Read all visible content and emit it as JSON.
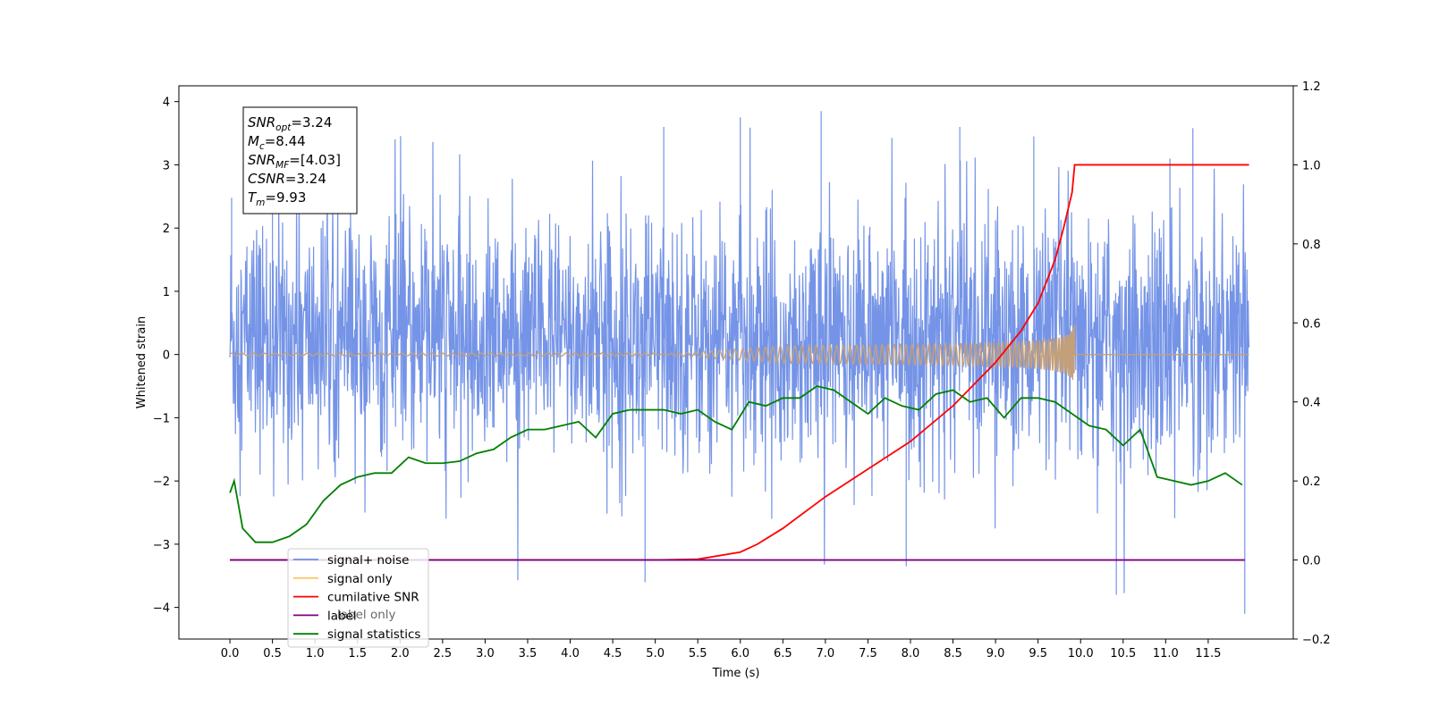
{
  "chart_data": {
    "type": "line",
    "xlabel": "Time (s)",
    "ylabel": "Whitened strain",
    "xlim": [
      -0.6,
      12.5
    ],
    "ylim": [
      -4.5,
      4.25
    ],
    "y2lim": [
      -0.2,
      1.2
    ],
    "x_ticks": [
      "0.0",
      "0.5",
      "1.0",
      "1.5",
      "2.0",
      "2.5",
      "3.0",
      "3.5",
      "4.0",
      "4.5",
      "5.0",
      "5.5",
      "6.0",
      "6.5",
      "7.0",
      "7.5",
      "8.0",
      "8.5",
      "9.0",
      "9.5",
      "10.0",
      "10.5",
      "11.0",
      "11.5"
    ],
    "y_ticks": [
      4,
      3,
      2,
      1,
      0,
      -1,
      -2,
      -3,
      -4
    ],
    "y2_ticks": [
      "1.2",
      "1.0",
      "0.8",
      "0.6",
      "0.4",
      "0.2",
      "0.0",
      "−0.2"
    ],
    "y_tick_labels": [
      "4",
      "3",
      "2",
      "1",
      "0",
      "−1",
      "−2",
      "−3",
      "−4"
    ],
    "info_box": {
      "snr_opt": {
        "base": "SNR",
        "sub": "opt",
        "value": "=3.24"
      },
      "mc": {
        "base": "M",
        "sub": "c",
        "value": "=8.44"
      },
      "snr_mf": {
        "base": "SNR",
        "sub": "MF",
        "value": "=[4.03]"
      },
      "csnr": {
        "base": "CSNR",
        "sub": "",
        "value": "=3.24"
      },
      "tm": {
        "base": "T",
        "sub": "m",
        "value": "=9.93"
      }
    },
    "legend": {
      "placement": "lower-left",
      "entries": [
        {
          "label": "signal+ noise",
          "color": "#6e8ee6"
        },
        {
          "label": "signal only",
          "color": "#ffc766"
        },
        {
          "label": "cumilative SNR",
          "color": "#ff0000"
        },
        {
          "label": "label",
          "color": "#800080"
        },
        {
          "label": "signal statistics",
          "color": "#008000"
        }
      ],
      "occluded_text": "label only"
    },
    "series": [
      {
        "name": "signal+ noise",
        "axis": "left",
        "color": "#6e8ee6",
        "x_range": [
          0,
          11.98
        ],
        "noise_std": 0.95,
        "noise_mean": 0.25,
        "y_range": [
          -4.1,
          3.9
        ],
        "peaks": [
          [
            0.02,
            2.48
          ],
          [
            0.5,
            3.0
          ],
          [
            4.88,
            -3.6
          ],
          [
            5.1,
            3.6
          ],
          [
            6.0,
            3.75
          ],
          [
            6.95,
            3.85
          ],
          [
            7.95,
            -3.35
          ],
          [
            8.58,
            3.6
          ],
          [
            9.45,
            3.45
          ],
          [
            10.42,
            -3.8
          ],
          [
            11.05,
            3.1
          ],
          [
            11.32,
            3.58
          ],
          [
            11.93,
            -4.1
          ]
        ]
      },
      {
        "name": "signal only",
        "axis": "left",
        "color": "#c4a07a",
        "x_range": [
          0,
          11.98
        ],
        "t_merger": 9.93,
        "peak_amplitude": 0.5
      },
      {
        "name": "cumilative SNR",
        "axis": "right",
        "color": "#ff0000",
        "x": [
          0,
          5.0,
          5.5,
          6.0,
          6.2,
          6.5,
          7.0,
          7.5,
          8.0,
          8.5,
          9.0,
          9.3,
          9.5,
          9.7,
          9.8,
          9.9,
          9.93,
          11.98
        ],
        "y": [
          0,
          0,
          0.002,
          0.02,
          0.04,
          0.08,
          0.16,
          0.23,
          0.3,
          0.39,
          0.5,
          0.58,
          0.65,
          0.76,
          0.84,
          0.93,
          1.0,
          1.0
        ]
      },
      {
        "name": "label",
        "axis": "right",
        "color": "#800080",
        "x": [
          0,
          11.93
        ],
        "y": [
          0,
          0
        ]
      },
      {
        "name": "signal statistics",
        "axis": "right",
        "color": "#008000",
        "x": [
          0,
          0.05,
          0.15,
          0.3,
          0.5,
          0.7,
          0.9,
          1.1,
          1.3,
          1.5,
          1.7,
          1.9,
          2.1,
          2.3,
          2.5,
          2.7,
          2.9,
          3.1,
          3.3,
          3.5,
          3.7,
          3.9,
          4.1,
          4.3,
          4.5,
          4.7,
          4.9,
          5.1,
          5.3,
          5.5,
          5.7,
          5.9,
          6.1,
          6.3,
          6.5,
          6.7,
          6.9,
          7.1,
          7.3,
          7.5,
          7.7,
          7.9,
          8.1,
          8.3,
          8.5,
          8.7,
          8.9,
          9.1,
          9.3,
          9.5,
          9.7,
          9.9,
          10.1,
          10.3,
          10.5,
          10.7,
          10.9,
          11.1,
          11.3,
          11.5,
          11.7,
          11.9
        ],
        "y": [
          0.17,
          0.2,
          0.08,
          0.045,
          0.045,
          0.06,
          0.09,
          0.15,
          0.19,
          0.21,
          0.22,
          0.22,
          0.26,
          0.245,
          0.245,
          0.25,
          0.27,
          0.28,
          0.31,
          0.33,
          0.33,
          0.34,
          0.35,
          0.31,
          0.37,
          0.38,
          0.38,
          0.38,
          0.37,
          0.38,
          0.35,
          0.33,
          0.4,
          0.39,
          0.41,
          0.41,
          0.44,
          0.43,
          0.4,
          0.37,
          0.41,
          0.39,
          0.38,
          0.42,
          0.43,
          0.4,
          0.41,
          0.36,
          0.41,
          0.41,
          0.4,
          0.37,
          0.34,
          0.33,
          0.29,
          0.33,
          0.21,
          0.2,
          0.19,
          0.2,
          0.22,
          0.19
        ]
      }
    ]
  }
}
